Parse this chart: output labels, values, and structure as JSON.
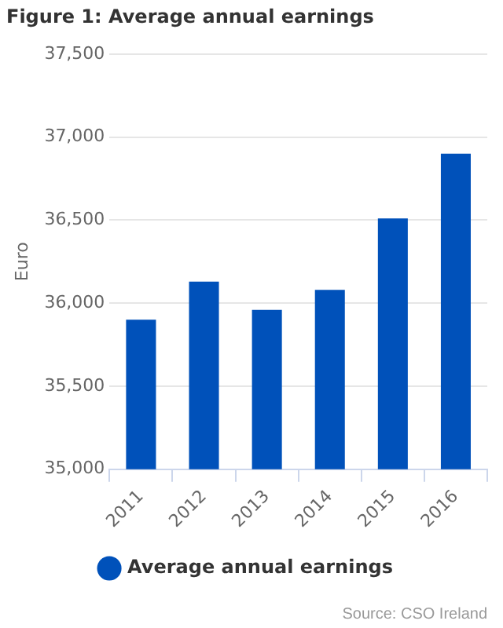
{
  "chart_data": {
    "type": "bar",
    "title": "Figure 1: Average annual earnings",
    "ylabel": "Euro",
    "categories": [
      "2011",
      "2012",
      "2013",
      "2014",
      "2015",
      "2016"
    ],
    "series": [
      {
        "name": "Average annual earnings",
        "color": "#0051ba",
        "values": [
          35900,
          36130,
          35960,
          36080,
          36510,
          36900
        ]
      }
    ],
    "ylim": [
      35000,
      37500
    ],
    "yticks": [
      {
        "value": 35000,
        "label": "35,000"
      },
      {
        "value": 35500,
        "label": "35,500"
      },
      {
        "value": 36000,
        "label": "36,000"
      },
      {
        "value": 36500,
        "label": "36,500"
      },
      {
        "value": 37000,
        "label": "37,000"
      },
      {
        "value": 37500,
        "label": "37,500"
      }
    ],
    "grid": "y",
    "legend": "bottom",
    "annotations": [
      "Source: CSO Ireland"
    ]
  }
}
